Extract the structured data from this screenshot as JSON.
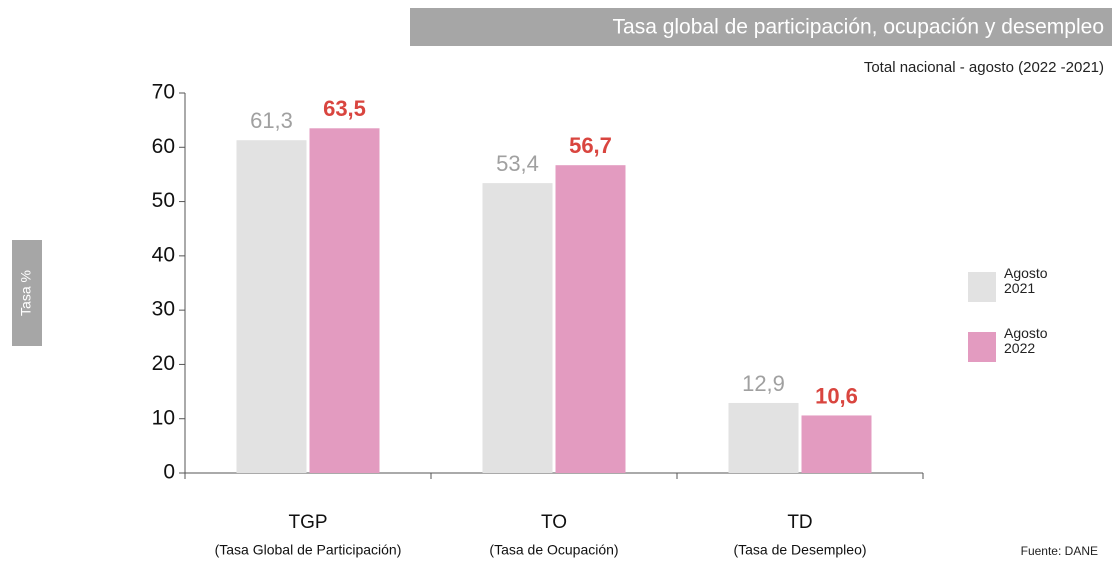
{
  "chart_data": {
    "type": "bar",
    "title": "Tasa global de participación, ocupación y desempleo",
    "subtitle": "Total nacional - agosto (2022 -2021)",
    "y_axis_label": "Tasa %",
    "source": "Fuente: DANE",
    "categories": [
      "TGP",
      "TO",
      "TD"
    ],
    "category_descriptions": [
      "(Tasa Global de Participación)",
      "(Tasa de Ocupación)",
      "(Tasa de Desempleo)"
    ],
    "series": [
      {
        "name": "Agosto 2021",
        "color": "#e2e2e2",
        "label_color": "#a0a0a0",
        "values": [
          61.3,
          53.4,
          12.9
        ],
        "value_labels": [
          "61,3",
          "53,4",
          "12,9"
        ]
      },
      {
        "name": "Agosto 2022",
        "color": "#e39bc0",
        "label_color": "#d9453f",
        "values": [
          63.5,
          56.7,
          10.6
        ],
        "value_labels": [
          "63,5",
          "56,7",
          "10,6"
        ]
      }
    ],
    "ylim": [
      0,
      70
    ],
    "yticks": [
      0,
      10,
      20,
      30,
      40,
      50,
      60,
      70
    ],
    "grid": false
  }
}
